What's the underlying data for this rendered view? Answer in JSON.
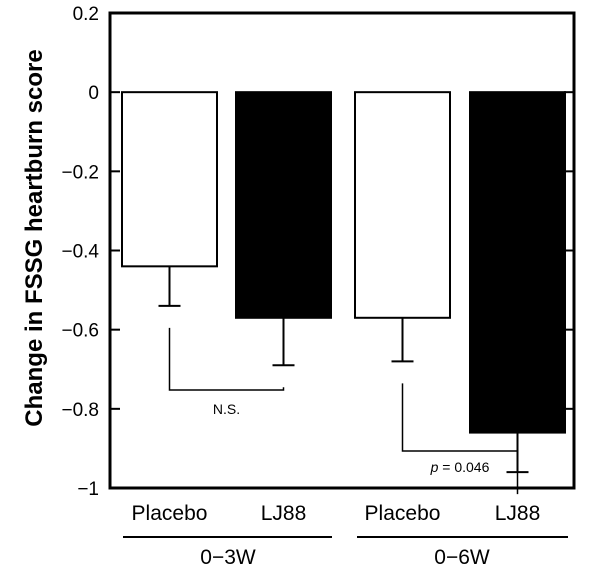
{
  "chart_data": {
    "type": "bar",
    "ylabel": "Change in FSSG heartburn score",
    "ylim": [
      -1,
      0.2
    ],
    "yticks": [
      "0.2",
      "0",
      "−0.2",
      "−0.4",
      "−0.6",
      "−0.8",
      "−1"
    ],
    "ytick_values": [
      0.2,
      0,
      -0.2,
      -0.4,
      -0.6,
      -0.8,
      -1
    ],
    "groups": [
      "0−3W",
      "0−6W"
    ],
    "categories": [
      "Placebo",
      "LJ88",
      "Placebo",
      "LJ88"
    ],
    "values": [
      -0.44,
      -0.57,
      -0.57,
      -0.86
    ],
    "errors": [
      0.1,
      0.12,
      0.11,
      0.1
    ],
    "bar_colors": [
      "#ffffff",
      "#000000",
      "#ffffff",
      "#000000"
    ],
    "annotations": [
      {
        "text": "N.S.",
        "between": [
          0,
          1
        ]
      },
      {
        "text_italic": "p",
        "text": " = 0.046",
        "between": [
          2,
          3
        ]
      }
    ],
    "grid": false
  }
}
